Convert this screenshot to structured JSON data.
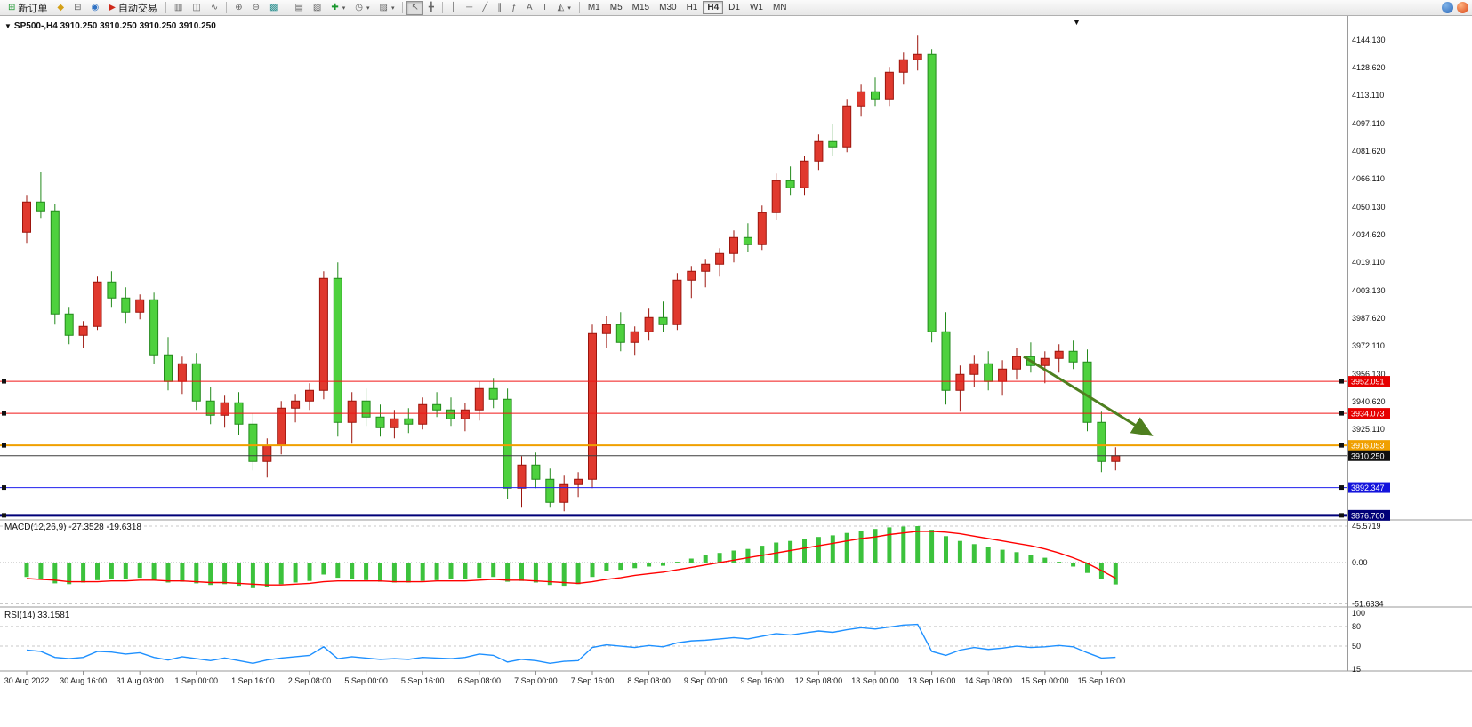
{
  "toolbar": {
    "new_order_label": "新订单",
    "auto_trading_label": "自动交易",
    "timeframes": [
      "M1",
      "M5",
      "M15",
      "M30",
      "H1",
      "H4",
      "D1",
      "W1",
      "MN"
    ],
    "active_timeframe": "H4"
  },
  "chart": {
    "title": "SP500-,H4 3910.250 3910.250 3910.250 3910.250",
    "symbol": "SP500-",
    "period": "H4"
  },
  "chart_data": {
    "type": "candlestick",
    "title": "SP500- H4",
    "up_color": "#e0392e",
    "up_stroke": "#9c150d",
    "down_color": "#4ed13e",
    "down_stroke": "#238a1c",
    "price_axis_ticks": [
      "4144.130",
      "4128.620",
      "4113.110",
      "4097.110",
      "4081.620",
      "4066.110",
      "4050.130",
      "4034.620",
      "4019.110",
      "4003.130",
      "3987.620",
      "3972.110",
      "3956.130",
      "3940.620",
      "3925.110"
    ],
    "candles": [
      [
        4036,
        4057,
        4030,
        4053
      ],
      [
        4053,
        4070,
        4044,
        4048
      ],
      [
        4048,
        4052,
        3984,
        3990
      ],
      [
        3990,
        3994,
        3973,
        3978
      ],
      [
        3978,
        3986,
        3971,
        3983
      ],
      [
        3983,
        4011,
        3981,
        4008
      ],
      [
        4008,
        4014,
        3994,
        3999
      ],
      [
        3999,
        4005,
        3985,
        3991
      ],
      [
        3991,
        4001,
        3987,
        3998
      ],
      [
        3998,
        4002,
        3962,
        3967
      ],
      [
        3967,
        3977,
        3947,
        3952
      ],
      [
        3952,
        3966,
        3945,
        3962
      ],
      [
        3962,
        3968,
        3936,
        3941
      ],
      [
        3941,
        3949,
        3928,
        3933
      ],
      [
        3933,
        3944,
        3926,
        3940
      ],
      [
        3940,
        3946,
        3922,
        3928
      ],
      [
        3928,
        3934,
        3902,
        3907
      ],
      [
        3907,
        3920,
        3898,
        3916
      ],
      [
        3916,
        3941,
        3911,
        3937
      ],
      [
        3937,
        3945,
        3929,
        3941
      ],
      [
        3941,
        3951,
        3936,
        3947
      ],
      [
        3947,
        4014,
        3942,
        4010
      ],
      [
        4010,
        4019,
        3921,
        3929
      ],
      [
        3929,
        3946,
        3917,
        3941
      ],
      [
        3941,
        3948,
        3927,
        3932
      ],
      [
        3932,
        3939,
        3921,
        3926
      ],
      [
        3926,
        3936,
        3920,
        3931
      ],
      [
        3931,
        3937,
        3923,
        3928
      ],
      [
        3928,
        3943,
        3925,
        3939
      ],
      [
        3939,
        3946,
        3932,
        3936
      ],
      [
        3936,
        3943,
        3927,
        3931
      ],
      [
        3931,
        3940,
        3924,
        3936
      ],
      [
        3936,
        3952,
        3930,
        3948
      ],
      [
        3948,
        3954,
        3937,
        3942
      ],
      [
        3942,
        3948,
        3886,
        3892
      ],
      [
        3892,
        3910,
        3881,
        3905
      ],
      [
        3905,
        3912,
        3892,
        3897
      ],
      [
        3897,
        3903,
        3881,
        3884
      ],
      [
        3884,
        3899,
        3879,
        3894
      ],
      [
        3894,
        3901,
        3887,
        3897
      ],
      [
        3897,
        3984,
        3892,
        3979
      ],
      [
        3979,
        3989,
        3971,
        3984
      ],
      [
        3984,
        3991,
        3969,
        3974
      ],
      [
        3974,
        3983,
        3967,
        3980
      ],
      [
        3980,
        3993,
        3975,
        3988
      ],
      [
        3988,
        3997,
        3980,
        3984
      ],
      [
        3984,
        4013,
        3981,
        4009
      ],
      [
        4009,
        4017,
        3999,
        4014
      ],
      [
        4014,
        4021,
        4005,
        4018
      ],
      [
        4018,
        4027,
        4011,
        4024
      ],
      [
        4024,
        4037,
        4019,
        4033
      ],
      [
        4033,
        4041,
        4025,
        4029
      ],
      [
        4029,
        4051,
        4026,
        4047
      ],
      [
        4047,
        4069,
        4043,
        4065
      ],
      [
        4065,
        4073,
        4057,
        4061
      ],
      [
        4061,
        4079,
        4057,
        4076
      ],
      [
        4076,
        4091,
        4071,
        4087
      ],
      [
        4087,
        4097,
        4079,
        4084
      ],
      [
        4084,
        4111,
        4081,
        4107
      ],
      [
        4107,
        4119,
        4101,
        4115
      ],
      [
        4115,
        4123,
        4107,
        4111
      ],
      [
        4111,
        4129,
        4107,
        4126
      ],
      [
        4126,
        4137,
        4119,
        4133
      ],
      [
        4133,
        4147,
        4127,
        4136
      ],
      [
        4136,
        4139,
        3974,
        3980
      ],
      [
        3980,
        3991,
        3939,
        3947
      ],
      [
        3947,
        3961,
        3935,
        3956
      ],
      [
        3956,
        3967,
        3949,
        3962
      ],
      [
        3962,
        3969,
        3947,
        3952
      ],
      [
        3952,
        3964,
        3944,
        3959
      ],
      [
        3959,
        3971,
        3953,
        3966
      ],
      [
        3966,
        3974,
        3957,
        3961
      ],
      [
        3961,
        3969,
        3951,
        3965
      ],
      [
        3965,
        3973,
        3957,
        3969
      ],
      [
        3969,
        3975,
        3959,
        3963
      ],
      [
        3963,
        3970,
        3924,
        3929
      ],
      [
        3929,
        3935,
        3901,
        3907
      ],
      [
        3907,
        3915,
        3902,
        3910.25
      ]
    ],
    "time_axis": {
      "step": 4,
      "labels": [
        "30 Aug 2022",
        "30 Aug 16:00",
        "31 Aug 08:00",
        "1 Sep 00:00",
        "1 Sep 16:00",
        "2 Sep 08:00",
        "5 Sep 00:00",
        "5 Sep 16:00",
        "6 Sep 08:00",
        "7 Sep 00:00",
        "7 Sep 16:00",
        "8 Sep 08:00",
        "9 Sep 00:00",
        "9 Sep 16:00",
        "12 Sep 08:00",
        "13 Sep 00:00",
        "13 Sep 16:00",
        "14 Sep 08:00",
        "15 Sep 00:00",
        "15 Sep 16:00"
      ]
    },
    "hlines": [
      {
        "label": "3952.091",
        "price": 3952.091,
        "color": "#f01616",
        "width": 1,
        "tag_color": "#e60000"
      },
      {
        "label": "3934.073",
        "price": 3934.073,
        "color": "#f01616",
        "width": 1,
        "tag_color": "#e60000"
      },
      {
        "label": "3916.053",
        "price": 3916.053,
        "color": "#f0a000",
        "width": 2,
        "tag_color": "#f0a000"
      },
      {
        "label": "3910.250",
        "price": 3910.25,
        "color": "#3c3c3c",
        "width": 1,
        "tag_color": "#101010",
        "style": "price"
      },
      {
        "label": "3892.347",
        "price": 3892.347,
        "color": "#2020ee",
        "width": 1,
        "tag_color": "#1414dc"
      },
      {
        "label": "3876.700",
        "price": 3876.7,
        "color": "#000078",
        "width": 3,
        "tag_color": "#000078"
      }
    ],
    "arrow": {
      "from_bar": 70.5,
      "from_price": 3966,
      "to_bar": 79.5,
      "to_price": 3922,
      "color": "#4e7f1f",
      "width": 3
    },
    "indicators": {
      "macd": {
        "label_text": "MACD(12,26,9) -27.3528 -19.6318",
        "hist_color": "#3cc23c",
        "signal_color": "#ff0000",
        "scale_labels": [
          "45.5719",
          "0.00",
          "-51.6334"
        ],
        "scale_values": [
          45.5719,
          0,
          -51.6334
        ],
        "hist": [
          -18,
          -21,
          -26,
          -27,
          -25,
          -22,
          -20,
          -20,
          -19,
          -22,
          -25,
          -24,
          -26,
          -28,
          -27,
          -29,
          -32,
          -30,
          -27,
          -25,
          -23,
          -15,
          -19,
          -21,
          -22,
          -24,
          -25,
          -25,
          -23,
          -22,
          -21,
          -21,
          -19,
          -18,
          -24,
          -23,
          -25,
          -28,
          -29,
          -27,
          -18,
          -11,
          -9,
          -7,
          -5,
          -4,
          1,
          5,
          9,
          12,
          15,
          17,
          21,
          25,
          27,
          29,
          32,
          34,
          37,
          40,
          42,
          44,
          45,
          45.57,
          41,
          33,
          27,
          23,
          19,
          16,
          13,
          10,
          6,
          1,
          -5,
          -13,
          -21,
          -27.35
        ],
        "signal": [
          -20,
          -21,
          -22,
          -24,
          -24,
          -24,
          -23,
          -23,
          -22,
          -22,
          -23,
          -23,
          -24,
          -25,
          -25,
          -26,
          -27,
          -28,
          -28,
          -27,
          -26,
          -24,
          -23,
          -23,
          -23,
          -23,
          -24,
          -24,
          -24,
          -23,
          -23,
          -23,
          -22,
          -21,
          -22,
          -22,
          -23,
          -24,
          -25,
          -26,
          -24,
          -21,
          -19,
          -16,
          -14,
          -12,
          -9,
          -6,
          -3,
          0,
          3,
          6,
          9,
          12,
          15,
          18,
          21,
          24,
          27,
          30,
          32,
          35,
          37,
          39,
          39,
          38,
          36,
          33,
          30,
          27,
          24,
          21,
          17,
          12,
          6,
          -1,
          -10,
          -19.63
        ]
      },
      "rsi": {
        "label_text": "RSI(14) 33.1581",
        "color": "#1e90ff",
        "scale_labels": [
          "100",
          "80",
          "50",
          "15"
        ],
        "scale_values": [
          100,
          80,
          50,
          15
        ],
        "levels": [
          80,
          50
        ],
        "values": [
          44,
          42,
          33,
          31,
          33,
          42,
          41,
          38,
          40,
          33,
          29,
          34,
          31,
          28,
          32,
          28,
          24,
          29,
          32,
          34,
          36,
          49,
          31,
          34,
          32,
          30,
          31,
          30,
          33,
          32,
          31,
          33,
          38,
          36,
          26,
          30,
          28,
          24,
          27,
          28,
          48,
          52,
          50,
          48,
          51,
          49,
          55,
          58,
          59,
          61,
          63,
          61,
          65,
          69,
          67,
          70,
          73,
          71,
          75,
          78,
          76,
          79,
          82,
          83,
          42,
          36,
          44,
          48,
          45,
          47,
          50,
          48,
          49,
          51,
          49,
          40,
          32,
          33.16
        ]
      }
    }
  }
}
